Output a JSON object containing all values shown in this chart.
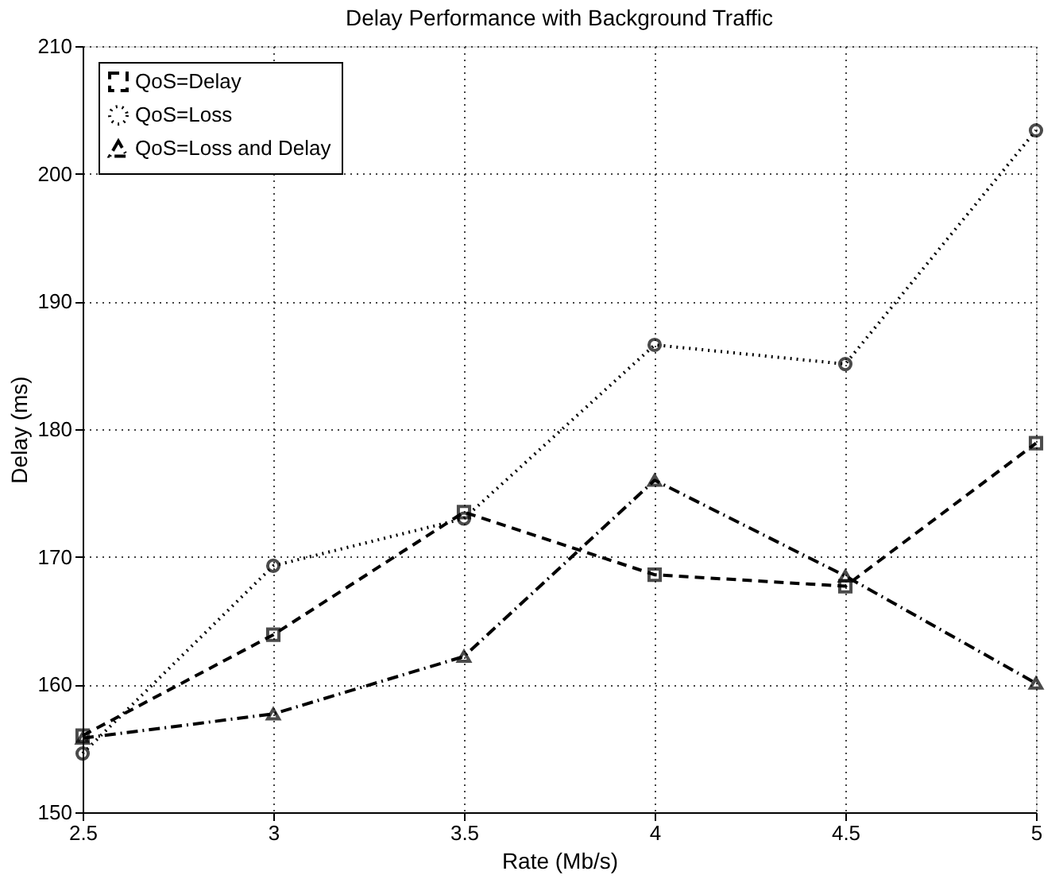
{
  "chart_data": {
    "type": "line",
    "title": "Delay Performance with Background Traffic",
    "xlabel": "Rate (Mb/s)",
    "ylabel": "Delay (ms)",
    "x": [
      2.5,
      3,
      3.5,
      4,
      4.5,
      5
    ],
    "series": [
      {
        "name": "QoS=Delay",
        "color": "#000000",
        "marker": "square",
        "line_style": "dashed",
        "values": [
          156.0,
          163.9,
          173.5,
          168.6,
          167.7,
          178.9
        ]
      },
      {
        "name": "QoS=Loss",
        "color": "#000000",
        "marker": "circle",
        "line_style": "dotted",
        "values": [
          154.6,
          169.3,
          173.0,
          186.6,
          185.1,
          203.4
        ]
      },
      {
        "name": "QoS=Loss and Delay",
        "color": "#000000",
        "marker": "triangle",
        "line_style": "dashdot",
        "values": [
          155.8,
          157.7,
          162.2,
          176.0,
          168.5,
          160.1
        ]
      }
    ],
    "xlim": [
      2.5,
      5
    ],
    "xticks": [
      2.5,
      3,
      3.5,
      4,
      4.5,
      5
    ],
    "ylim": [
      150,
      210
    ],
    "yticks": [
      150,
      160,
      170,
      180,
      190,
      200,
      210
    ],
    "grid": true,
    "legend": "top left"
  }
}
